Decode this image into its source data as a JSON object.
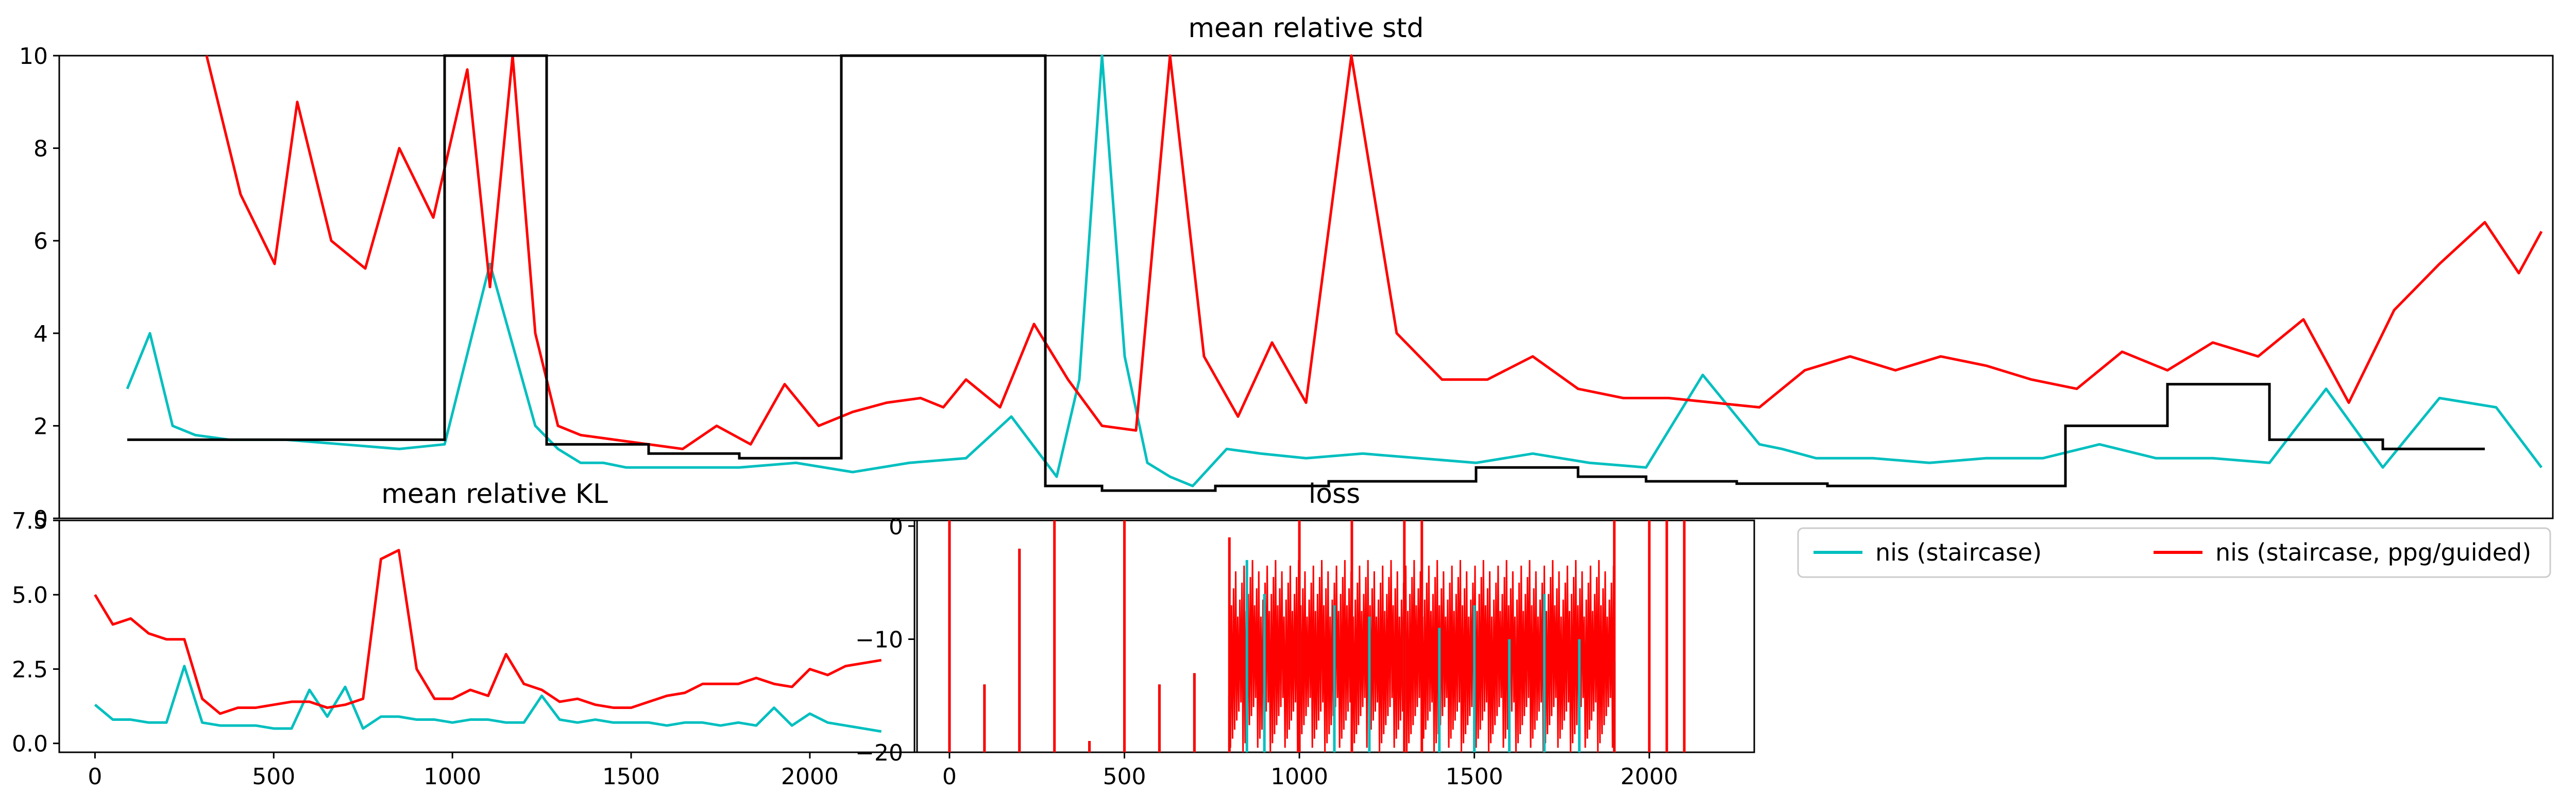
{
  "figure": {
    "legend": {
      "entries": [
        {
          "label": "nis (staircase)",
          "color": "#00bfbf"
        },
        {
          "label": "nis (staircase, ppg/guided)",
          "color": "#ff0000"
        }
      ]
    }
  },
  "chart_data": [
    {
      "id": "mean-relative-std",
      "type": "line",
      "title": "mean relative std",
      "ylim": [
        0,
        10
      ],
      "xlim": [
        0,
        22
      ],
      "y_ticks": [
        "0",
        "2",
        "4",
        "6",
        "8",
        "10"
      ],
      "x_tick_labels_visible": false,
      "grid": false,
      "series": [
        {
          "name": "nis (staircase)",
          "color": "#00bfbf",
          "x": [
            0.6,
            0.8,
            1.0,
            1.2,
            1.5,
            2.0,
            2.5,
            3.0,
            3.4,
            3.8,
            4.2,
            4.4,
            4.6,
            4.8,
            5.0,
            5.2,
            5.5,
            6.0,
            6.5,
            7.0,
            7.5,
            8.0,
            8.4,
            8.8,
            9.0,
            9.2,
            9.4,
            9.6,
            9.8,
            10.0,
            10.3,
            10.6,
            11.0,
            11.5,
            12.0,
            12.5,
            13.0,
            13.5,
            14.0,
            14.5,
            15.0,
            15.2,
            15.5,
            16.0,
            16.5,
            17.0,
            17.5,
            18.0,
            18.5,
            19.0,
            19.5,
            20.0,
            20.5,
            21.0,
            21.5,
            21.9
          ],
          "y": [
            2.8,
            4.0,
            2.0,
            1.8,
            1.7,
            1.7,
            1.6,
            1.5,
            1.6,
            5.5,
            2.0,
            1.5,
            1.2,
            1.2,
            1.1,
            1.1,
            1.1,
            1.1,
            1.2,
            1.0,
            1.2,
            1.3,
            2.2,
            0.9,
            3.0,
            10.0,
            3.5,
            1.2,
            0.9,
            0.7,
            1.5,
            1.4,
            1.3,
            1.4,
            1.3,
            1.2,
            1.4,
            1.2,
            1.1,
            3.1,
            1.6,
            1.5,
            1.3,
            1.3,
            1.2,
            1.3,
            1.3,
            1.6,
            1.3,
            1.3,
            1.2,
            2.8,
            1.1,
            2.6,
            2.4,
            1.1
          ],
          "note": "sampled approximation"
        },
        {
          "name": "nis (staircase, ppg/guided)",
          "color": "#ff0000",
          "x": [
            1.3,
            1.6,
            1.9,
            2.1,
            2.4,
            2.7,
            3.0,
            3.3,
            3.6,
            3.8,
            4.0,
            4.2,
            4.4,
            4.6,
            4.9,
            5.2,
            5.5,
            5.8,
            6.1,
            6.4,
            6.7,
            7.0,
            7.3,
            7.6,
            7.8,
            8.0,
            8.3,
            8.6,
            8.9,
            9.2,
            9.5,
            9.8,
            10.1,
            10.4,
            10.7,
            11.0,
            11.4,
            11.8,
            12.2,
            12.6,
            13.0,
            13.4,
            13.8,
            14.2,
            14.6,
            15.0,
            15.4,
            15.8,
            16.2,
            16.6,
            17.0,
            17.4,
            17.8,
            18.2,
            18.6,
            19.0,
            19.4,
            19.8,
            20.2,
            20.6,
            21.0,
            21.4,
            21.7,
            21.9
          ],
          "y": [
            10.0,
            7.0,
            5.5,
            9.0,
            6.0,
            5.4,
            8.0,
            6.5,
            9.7,
            5.0,
            10.0,
            4.0,
            2.0,
            1.8,
            1.7,
            1.6,
            1.5,
            2.0,
            1.6,
            2.9,
            2.0,
            2.3,
            2.5,
            2.6,
            2.4,
            3.0,
            2.4,
            4.2,
            3.0,
            2.0,
            1.9,
            10.0,
            3.5,
            2.2,
            3.8,
            2.5,
            10.0,
            4.0,
            3.0,
            3.0,
            3.5,
            2.8,
            2.6,
            2.6,
            2.5,
            2.4,
            3.2,
            3.5,
            3.2,
            3.5,
            3.3,
            3.0,
            2.8,
            3.6,
            3.2,
            3.8,
            3.5,
            4.3,
            2.5,
            4.5,
            5.5,
            6.4,
            5.3,
            6.2
          ],
          "note": "sampled approximation"
        },
        {
          "name": "",
          "color": "#000000",
          "step_levels": [
            {
              "from": 0.6,
              "to": 3.4,
              "y": 1.7
            },
            {
              "from": 3.4,
              "to": 4.3,
              "y": 10.0
            },
            {
              "from": 4.3,
              "to": 5.2,
              "y": 1.6
            },
            {
              "from": 5.2,
              "to": 6.0,
              "y": 1.4
            },
            {
              "from": 6.0,
              "to": 6.9,
              "y": 1.3
            },
            {
              "from": 6.9,
              "to": 8.7,
              "y": 10.0
            },
            {
              "from": 8.7,
              "to": 9.2,
              "y": 0.7
            },
            {
              "from": 9.2,
              "to": 10.2,
              "y": 0.6
            },
            {
              "from": 10.2,
              "to": 11.2,
              "y": 0.7
            },
            {
              "from": 11.2,
              "to": 12.5,
              "y": 0.8
            },
            {
              "from": 12.5,
              "to": 13.4,
              "y": 1.1
            },
            {
              "from": 13.4,
              "to": 14.0,
              "y": 0.9
            },
            {
              "from": 14.0,
              "to": 14.8,
              "y": 0.8
            },
            {
              "from": 14.8,
              "to": 15.6,
              "y": 0.75
            },
            {
              "from": 15.6,
              "to": 17.7,
              "y": 0.7
            },
            {
              "from": 17.7,
              "to": 18.6,
              "y": 2.0
            },
            {
              "from": 18.6,
              "to": 19.5,
              "y": 2.9
            },
            {
              "from": 19.5,
              "to": 20.5,
              "y": 1.7
            },
            {
              "from": 20.5,
              "to": 21.4,
              "y": 1.5
            }
          ]
        }
      ]
    },
    {
      "id": "mean-relative-kl",
      "type": "line",
      "title": "mean relative KL",
      "xlim": [
        -100,
        2300
      ],
      "ylim": [
        -0.3,
        7.5
      ],
      "x_ticks": [
        "0",
        "500",
        "1000",
        "1500",
        "2000"
      ],
      "y_ticks": [
        "0.0",
        "2.5",
        "5.0",
        "7.5"
      ],
      "grid": false,
      "series": [
        {
          "name": "nis (staircase)",
          "color": "#00bfbf",
          "x": [
            0,
            50,
            100,
            150,
            200,
            250,
            300,
            350,
            400,
            450,
            500,
            550,
            600,
            650,
            700,
            750,
            800,
            850,
            900,
            950,
            1000,
            1050,
            1100,
            1150,
            1200,
            1250,
            1300,
            1350,
            1400,
            1450,
            1500,
            1550,
            1600,
            1650,
            1700,
            1750,
            1800,
            1850,
            1900,
            1950,
            2000,
            2050,
            2100,
            2150,
            2200
          ],
          "y": [
            1.3,
            0.8,
            0.8,
            0.7,
            0.7,
            2.6,
            0.7,
            0.6,
            0.6,
            0.6,
            0.5,
            0.5,
            1.8,
            0.9,
            1.9,
            0.5,
            0.9,
            0.9,
            0.8,
            0.8,
            0.7,
            0.8,
            0.8,
            0.7,
            0.7,
            1.6,
            0.8,
            0.7,
            0.8,
            0.7,
            0.7,
            0.7,
            0.6,
            0.7,
            0.7,
            0.6,
            0.7,
            0.6,
            1.2,
            0.6,
            1.0,
            0.7,
            0.6,
            0.5,
            0.4
          ],
          "note": "sampled approximation"
        },
        {
          "name": "nis (staircase, ppg/guided)",
          "color": "#ff0000",
          "x": [
            0,
            50,
            100,
            150,
            200,
            250,
            300,
            350,
            400,
            450,
            500,
            550,
            600,
            650,
            700,
            750,
            800,
            850,
            900,
            950,
            1000,
            1050,
            1100,
            1150,
            1200,
            1250,
            1300,
            1350,
            1400,
            1450,
            1500,
            1550,
            1600,
            1650,
            1700,
            1750,
            1800,
            1850,
            1900,
            1950,
            2000,
            2050,
            2100,
            2150,
            2200
          ],
          "y": [
            5.0,
            4.0,
            4.2,
            3.7,
            3.5,
            3.5,
            1.5,
            1.0,
            1.2,
            1.2,
            1.3,
            1.4,
            1.4,
            1.2,
            1.3,
            1.5,
            6.2,
            6.5,
            2.5,
            1.5,
            1.5,
            1.8,
            1.6,
            3.0,
            2.0,
            1.8,
            1.4,
            1.5,
            1.3,
            1.2,
            1.2,
            1.4,
            1.6,
            1.7,
            2.0,
            2.0,
            2.0,
            2.2,
            2.0,
            1.9,
            2.5,
            2.3,
            2.6,
            2.7,
            2.8
          ],
          "note": "sampled approximation"
        }
      ]
    },
    {
      "id": "loss",
      "type": "line",
      "title": "loss",
      "xlim": [
        -100,
        2300
      ],
      "ylim": [
        -20,
        0.5
      ],
      "x_ticks": [
        "0",
        "500",
        "1000",
        "1500",
        "2000"
      ],
      "y_ticks": [
        "−20",
        "−10",
        "0"
      ],
      "grid": false,
      "series": [
        {
          "name": "nis (staircase)",
          "color": "#00bfbf",
          "spikes": [
            [
              0,
              0.5
            ],
            [
              100,
              -14
            ],
            [
              200,
              -2
            ],
            [
              400,
              -19
            ],
            [
              600,
              -14
            ],
            [
              700,
              -13
            ],
            [
              800,
              -15
            ],
            [
              850,
              -3
            ],
            [
              900,
              -6
            ],
            [
              1000,
              -5
            ],
            [
              1100,
              -7
            ],
            [
              1200,
              -8
            ],
            [
              1300,
              -6
            ],
            [
              1400,
              -9
            ],
            [
              1500,
              -7
            ],
            [
              1600,
              -10
            ],
            [
              1700,
              -6
            ],
            [
              1800,
              -10
            ],
            [
              1900,
              -12
            ]
          ],
          "note": "sampled approximation"
        },
        {
          "name": "nis (staircase, ppg/guided)",
          "color": "#ff0000",
          "spikes": [
            [
              0,
              0.5
            ],
            [
              100,
              -14
            ],
            [
              200,
              -2
            ],
            [
              300,
              0.5
            ],
            [
              400,
              -19
            ],
            [
              500,
              0.5
            ],
            [
              600,
              -14
            ],
            [
              700,
              -13
            ],
            [
              800,
              -1
            ],
            [
              1000,
              0.5
            ],
            [
              1150,
              0.5
            ],
            [
              1300,
              0.5
            ],
            [
              1350,
              0.5
            ],
            [
              1900,
              0.5
            ],
            [
              2000,
              0.5
            ],
            [
              2050,
              0.5
            ],
            [
              2100,
              0.5
            ]
          ],
          "dense_band": {
            "from": 800,
            "to": 1900,
            "ceiling": -3,
            "floor": -20
          },
          "note": "sampled approximation"
        }
      ]
    }
  ]
}
